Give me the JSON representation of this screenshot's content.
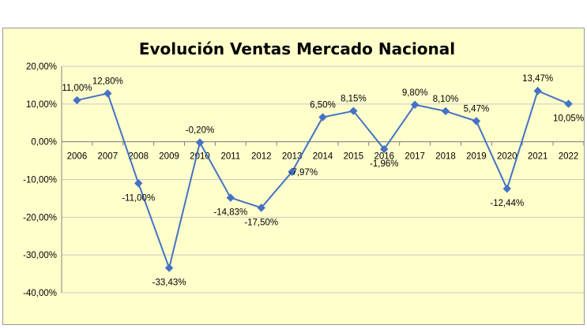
{
  "chart_data": {
    "type": "line",
    "title": "Evolución Ventas Mercado Nacional",
    "xlabel": "",
    "ylabel": "",
    "categories": [
      "2006",
      "2007",
      "2008",
      "2009",
      "2010",
      "2011",
      "2012",
      "2013",
      "2014",
      "2015",
      "2016",
      "2017",
      "2018",
      "2019",
      "2020",
      "2021",
      "2022"
    ],
    "values": [
      11.0,
      12.8,
      -11.0,
      -33.43,
      -0.2,
      -14.83,
      -17.5,
      -7.97,
      6.5,
      8.15,
      -1.96,
      9.8,
      8.1,
      5.47,
      -12.44,
      13.47,
      10.05
    ],
    "data_labels": [
      "11,00%",
      "12,80%",
      "-11,00%",
      "-33,43%",
      "-0,20%",
      "-14,83%",
      "-17,50%",
      "-7,97%",
      "6,50%",
      "8,15%",
      "-1,96%",
      "9,80%",
      "8,10%",
      "5,47%",
      "-12,44%",
      "13,47%",
      "10,05%"
    ],
    "ylim": [
      -40,
      20
    ],
    "y_ticks": [
      20,
      10,
      0,
      -10,
      -20,
      -30,
      -40
    ],
    "y_tick_labels": [
      "20,00%",
      "10,00%",
      "0,00%",
      "-10,00%",
      "-20,00%",
      "-30,00%",
      "-40,00%"
    ],
    "grid": "horizontal",
    "legend": "none",
    "colors": {
      "series": "#4472c4",
      "background": "#ffffcc",
      "gridline": "#c8c8c8",
      "axis": "#808080"
    }
  }
}
